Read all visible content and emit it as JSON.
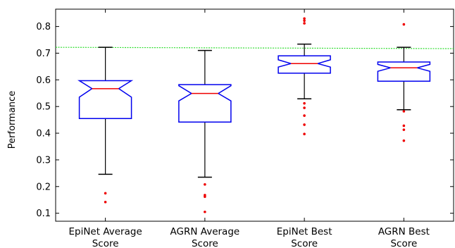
{
  "chart_data": {
    "type": "boxplot",
    "ylabel": "Performance",
    "ylim": [
      0.07,
      0.865
    ],
    "yticks": [
      "0.1",
      "0.2",
      "0.3",
      "0.4",
      "0.5",
      "0.6",
      "0.7",
      "0.8"
    ],
    "grid": false,
    "reference_line": {
      "y_start": 0.722,
      "y_end": 0.717,
      "color": "#33dd33",
      "style": "dotted"
    },
    "colors": {
      "box": "#0000ee",
      "median": "#ee0000",
      "whisker": "#000000",
      "outlier": "#ee0000"
    },
    "categories": [
      [
        "EpiNet Average",
        "Score"
      ],
      [
        "AGRN Average",
        "Score"
      ],
      [
        "EpiNet Best",
        "Score"
      ],
      [
        "AGRN Best",
        "Score"
      ]
    ],
    "boxes": [
      {
        "whisker_low": 0.246,
        "q1": 0.455,
        "notch_low": 0.535,
        "median": 0.567,
        "notch_high": 0.597,
        "q3": 0.597,
        "whisker_high": 0.722,
        "outliers": [
          0.175,
          0.142
        ]
      },
      {
        "whisker_low": 0.235,
        "q1": 0.442,
        "notch_low": 0.521,
        "median": 0.549,
        "notch_high": 0.578,
        "q3": 0.582,
        "whisker_high": 0.71,
        "outliers": [
          0.208,
          0.168,
          0.162,
          0.105
        ]
      },
      {
        "whisker_low": 0.529,
        "q1": 0.625,
        "notch_low": 0.648,
        "median": 0.661,
        "notch_high": 0.675,
        "q3": 0.69,
        "whisker_high": 0.734,
        "outliers": [
          0.83,
          0.822,
          0.812,
          0.512,
          0.495,
          0.466,
          0.432,
          0.397
        ]
      },
      {
        "whisker_low": 0.488,
        "q1": 0.595,
        "notch_low": 0.632,
        "median": 0.645,
        "notch_high": 0.658,
        "q3": 0.667,
        "whisker_high": 0.722,
        "outliers": [
          0.808,
          0.482,
          0.428,
          0.413,
          0.372
        ]
      }
    ]
  }
}
